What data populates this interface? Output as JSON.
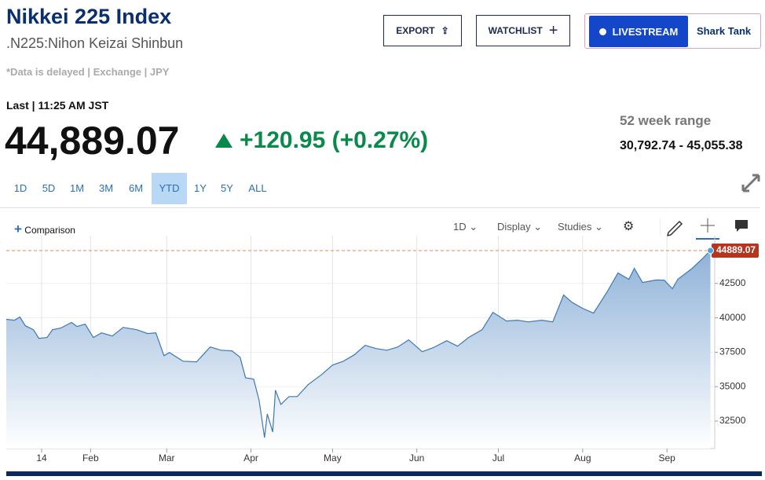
{
  "header": {
    "title": "Nikkei 225 Index",
    "subtitle": ".N225:Nihon Keizai Shinbun",
    "note": "*Data is delayed | Exchange | JPY",
    "buttons": [
      "EXPORT",
      "WATCHLIST",
      "LIVESTREAM",
      "Shark Tank"
    ]
  },
  "quote": {
    "last_time": "Last | 11:25 AM JST",
    "price": "44,889.07",
    "change": "+120.95 (+0.27%)",
    "range_label": "52 week range",
    "range": "30,792.74 - 45,055.38"
  },
  "periods": [
    "1D",
    "5D",
    "1M",
    "3M",
    "6M",
    "YTD",
    "1Y",
    "5Y",
    "ALL"
  ],
  "active_period": "YTD",
  "toolbar": {
    "comparison": "Comparison",
    "interval": "1D",
    "display": "Display",
    "studies": "Studies"
  },
  "chart_data": {
    "type": "area",
    "color": "#3f78b5",
    "x": [
      0,
      3,
      5,
      7,
      10,
      12,
      15,
      17,
      20,
      24,
      26,
      29,
      32,
      35,
      39,
      43,
      48,
      52,
      55,
      58,
      60,
      65,
      70,
      75,
      79,
      83,
      86,
      88,
      91,
      93,
      95,
      96,
      98,
      99,
      101,
      104,
      107,
      111,
      116,
      120,
      124,
      128,
      132,
      136,
      140,
      144,
      148,
      153,
      157,
      162,
      166,
      170,
      175,
      179,
      184,
      188,
      192,
      197,
      201,
      205,
      208,
      212,
      216,
      221,
      225,
      229,
      231,
      234,
      239,
      242,
      245,
      247,
      252,
      256,
      259
    ],
    "values": [
      39890,
      39830,
      40060,
      39430,
      39140,
      38510,
      38570,
      39140,
      39260,
      39660,
      39370,
      39540,
      38570,
      38910,
      38680,
      39310,
      39140,
      38860,
      38910,
      37250,
      37480,
      36850,
      36800,
      37880,
      37650,
      37600,
      37140,
      35650,
      35540,
      34000,
      31300,
      33020,
      31710,
      34740,
      33710,
      34280,
      34280,
      35140,
      35880,
      36570,
      36850,
      37310,
      38000,
      37770,
      37650,
      37880,
      38400,
      37540,
      37830,
      38340,
      37940,
      38570,
      39140,
      40400,
      39770,
      39830,
      39710,
      39830,
      39710,
      41660,
      41140,
      40690,
      40340,
      41890,
      43260,
      42800,
      43600,
      42570,
      42750,
      42740,
      42120,
      42800,
      43550,
      44290,
      44889.07
    ],
    "xlim": [
      0,
      260
    ],
    "xticks": [
      {
        "value": 13,
        "label": "14"
      },
      {
        "value": 31,
        "label": "Feb"
      },
      {
        "value": 59,
        "label": "Mar"
      },
      {
        "value": 90,
        "label": "Apr"
      },
      {
        "value": 120,
        "label": "May"
      },
      {
        "value": 151,
        "label": "Jun"
      },
      {
        "value": 181,
        "label": "Jul"
      },
      {
        "value": 212,
        "label": "Aug"
      },
      {
        "value": 243,
        "label": "Sep"
      }
    ],
    "ylim": [
      30500,
      45400
    ],
    "yticks": [
      32500,
      35000,
      37500,
      40000,
      42500
    ],
    "grid": true
  }
}
